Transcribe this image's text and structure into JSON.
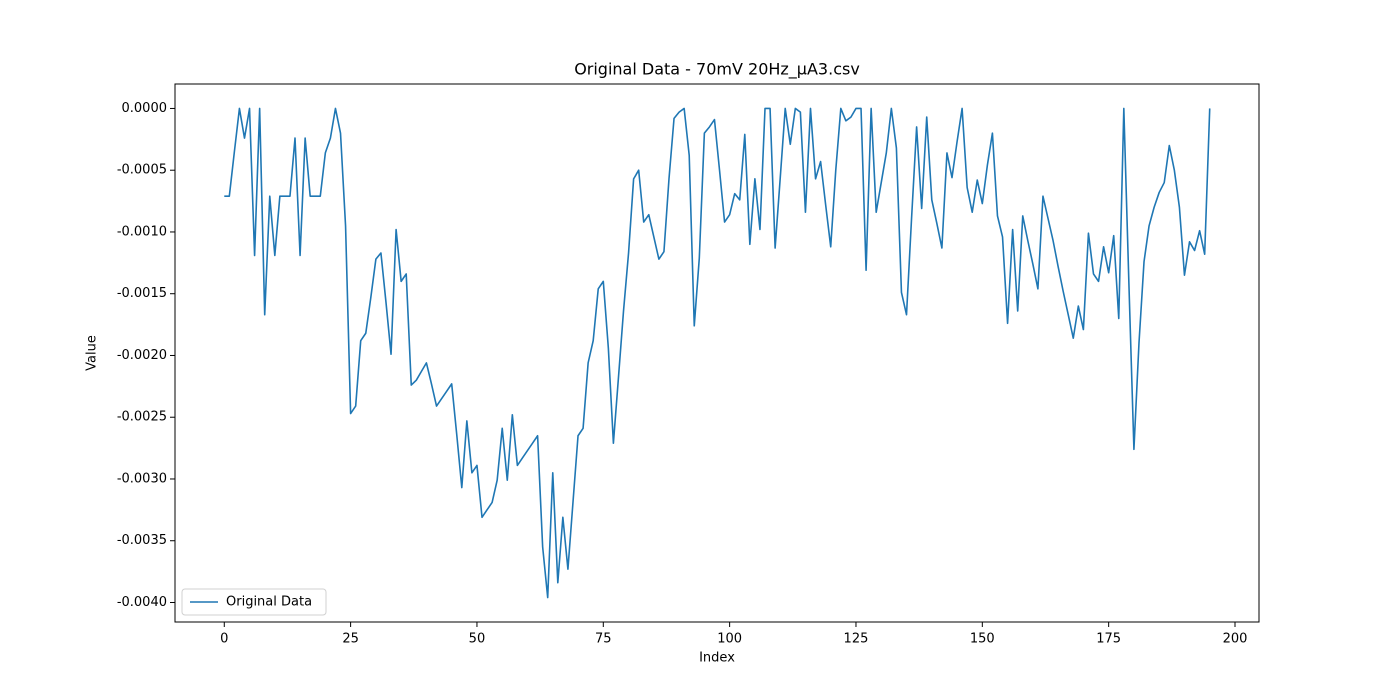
{
  "chart_data": {
    "type": "line",
    "title": "Original Data - 70mV 20Hz_µA3.csv",
    "x_label": "Index",
    "y_label": "Value",
    "x": [
      0,
      1,
      2,
      3,
      4,
      5,
      6,
      7,
      8,
      9,
      10,
      11,
      12,
      13,
      14,
      15,
      16,
      17,
      18,
      19,
      20,
      21,
      22,
      23,
      24,
      25,
      26,
      27,
      28,
      29,
      30,
      31,
      32,
      33,
      34,
      35,
      36,
      37,
      38,
      39,
      40,
      41,
      42,
      43,
      44,
      45,
      46,
      47,
      48,
      49,
      50,
      51,
      52,
      53,
      54,
      55,
      56,
      57,
      58,
      59,
      60,
      61,
      62,
      63,
      64,
      65,
      66,
      67,
      68,
      69,
      70,
      71,
      72,
      73,
      74,
      75,
      76,
      77,
      78,
      79,
      80,
      81,
      82,
      83,
      84,
      85,
      86,
      87,
      88,
      89,
      90,
      91,
      92,
      93,
      94,
      95,
      96,
      97,
      98,
      99,
      100,
      101,
      102,
      103,
      104,
      105,
      106,
      107,
      108,
      109,
      110,
      111,
      112,
      113,
      114,
      115,
      116,
      117,
      118,
      119,
      120,
      121,
      122,
      123,
      124,
      125,
      126,
      127,
      128,
      129,
      130,
      131,
      132,
      133,
      134,
      135,
      136,
      137,
      138,
      139,
      140,
      141,
      142,
      143,
      144,
      145,
      146,
      147,
      148,
      149,
      150,
      151,
      152,
      153,
      154,
      155,
      156,
      157,
      158,
      159,
      160,
      161,
      162,
      163,
      164,
      165,
      166,
      167,
      168,
      169,
      170,
      171,
      172,
      173,
      174,
      175,
      176,
      177,
      178,
      179,
      180,
      181,
      182,
      183,
      184,
      185,
      186,
      187,
      188,
      189,
      190,
      191,
      192,
      193,
      194,
      195
    ],
    "series": [
      {
        "name": "Original Data",
        "color": "#1f77b4",
        "values": [
          -0.00071,
          -0.00071,
          -0.00035,
          0,
          -0.00024,
          0,
          -0.00119,
          0,
          -0.00167,
          -0.00071,
          -0.00119,
          -0.00071,
          -0.00071,
          -0.00071,
          -0.00024,
          -0.00119,
          -0.00024,
          -0.00071,
          -0.00071,
          -0.00071,
          -0.00036,
          -0.00024,
          0,
          -0.0002,
          -0.00095,
          -0.00247,
          -0.00241,
          -0.00188,
          -0.00182,
          -0.00153,
          -0.00122,
          -0.00117,
          -0.00157,
          -0.00199,
          -0.00098,
          -0.0014,
          -0.00134,
          -0.00224,
          -0.0022,
          -0.00213,
          -0.00206,
          -0.00223,
          -0.00241,
          -0.00235,
          -0.00229,
          -0.00223,
          -0.00264,
          -0.00307,
          -0.00253,
          -0.00295,
          -0.00289,
          -0.00331,
          -0.00325,
          -0.00319,
          -0.00301,
          -0.00259,
          -0.00301,
          -0.00248,
          -0.00289,
          -0.00283,
          -0.00277,
          -0.00271,
          -0.00265,
          -0.00355,
          -0.00396,
          -0.00295,
          -0.00384,
          -0.00331,
          -0.00373,
          -0.00319,
          -0.00265,
          -0.00259,
          -0.00206,
          -0.00188,
          -0.00146,
          -0.0014,
          -0.00194,
          -0.00271,
          -0.00218,
          -0.00164,
          -0.00117,
          -0.00057,
          -0.0005,
          -0.00092,
          -0.00086,
          -0.00104,
          -0.00122,
          -0.00116,
          -0.00057,
          -8e-05,
          -3e-05,
          0,
          -0.00038,
          -0.00176,
          -0.00121,
          -0.0002,
          -0.00015,
          -9e-05,
          -0.0005,
          -0.00092,
          -0.00086,
          -0.00069,
          -0.00074,
          -0.00021,
          -0.0011,
          -0.00057,
          -0.00098,
          0,
          0,
          -0.00113,
          -0.00057,
          0,
          -0.00029,
          0,
          -3e-05,
          -0.00084,
          0,
          -0.00057,
          -0.00043,
          -0.00078,
          -0.00112,
          -0.0005,
          0,
          -0.0001,
          -7e-05,
          0,
          0,
          -0.00131,
          0,
          -0.00084,
          -0.0006,
          -0.00036,
          0,
          -0.00032,
          -0.00149,
          -0.00167,
          -0.00089,
          -0.00015,
          -0.00081,
          -7e-05,
          -0.00074,
          -0.00093,
          -0.00113,
          -0.00036,
          -0.00056,
          -0.00027,
          0,
          -0.00064,
          -0.00084,
          -0.00058,
          -0.00077,
          -0.00046,
          -0.0002,
          -0.00087,
          -0.00104,
          -0.00174,
          -0.00098,
          -0.00164,
          -0.00087,
          -0.00107,
          -0.00126,
          -0.00146,
          -0.00071,
          -0.00089,
          -0.00107,
          -0.00128,
          -0.00148,
          -0.00167,
          -0.00186,
          -0.0016,
          -0.00179,
          -0.00101,
          -0.00134,
          -0.0014,
          -0.00112,
          -0.00133,
          -0.00103,
          -0.0017,
          0,
          -0.00141,
          -0.00276,
          -0.0019,
          -0.00124,
          -0.00095,
          -0.0008,
          -0.00068,
          -0.0006,
          -0.0003,
          -0.0005,
          -0.0008,
          -0.00135,
          -0.00108,
          -0.00115,
          -0.00099,
          -0.00118,
          0
        ]
      }
    ],
    "xlim": [
      -9.75,
      204.75
    ],
    "ylim": [
      -0.004158,
      0.000198
    ],
    "xticks": [
      0,
      25,
      50,
      75,
      100,
      125,
      150,
      175,
      200
    ],
    "yticks": [
      {
        "value": 0,
        "label": "0.0000"
      },
      {
        "value": -0.0005,
        "label": "-0.0005"
      },
      {
        "value": -0.001,
        "label": "-0.0010"
      },
      {
        "value": -0.0015,
        "label": "-0.0015"
      },
      {
        "value": -0.002,
        "label": "-0.0020"
      },
      {
        "value": -0.0025,
        "label": "-0.0025"
      },
      {
        "value": -0.003,
        "label": "-0.0030"
      },
      {
        "value": -0.0035,
        "label": "-0.0035"
      },
      {
        "value": -0.004,
        "label": "-0.0040"
      }
    ],
    "grid": false,
    "legend": "lower left"
  }
}
